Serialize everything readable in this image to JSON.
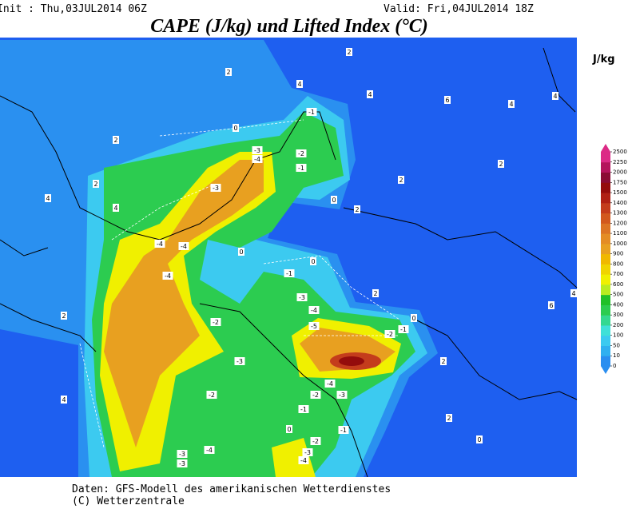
{
  "header": {
    "init": "Init : Thu,03JUL2014 06Z",
    "valid": "Valid: Fri,04JUL2014 18Z",
    "title": "CAPE (J/kg) und Lifted Index (°C)"
  },
  "colorbar": {
    "unit": "J/kg",
    "ticks": [
      0,
      10,
      50,
      100,
      200,
      300,
      400,
      500,
      600,
      700,
      800,
      900,
      1000,
      1100,
      1200,
      1300,
      1400,
      1500,
      1750,
      2000,
      2250,
      2500
    ],
    "colors": [
      "#2a8ef0",
      "#30b0f0",
      "#3ccaf0",
      "#40e0d8",
      "#34d890",
      "#2ccc50",
      "#20c028",
      "#b8ec20",
      "#f0f000",
      "#f0d400",
      "#f0b800",
      "#e8a020",
      "#e48c24",
      "#dc7424",
      "#d2581e",
      "#c43c1c",
      "#b02014",
      "#940c0c",
      "#8a0c34",
      "#b4145c",
      "#dc2a86"
    ]
  },
  "contour_labels": [
    2,
    2,
    4,
    6,
    4,
    4,
    4,
    -1,
    2,
    0,
    -3,
    -4,
    -2,
    -1,
    2,
    2,
    2,
    -3,
    4,
    0,
    2,
    4,
    -4,
    -4,
    0,
    0,
    -4,
    -1,
    2,
    -3,
    -4,
    2,
    6,
    4,
    0,
    -1,
    -5,
    -2,
    -2,
    -3,
    2,
    -4,
    -3,
    -2,
    -2,
    4,
    -1,
    -1,
    0,
    -2,
    2,
    0,
    -4,
    -3,
    -3,
    -3,
    -4
  ],
  "footer": {
    "source": "Daten: GFS-Modell des amerikanischen Wetterdienstes",
    "copyright": "(C) Wetterzentrale"
  }
}
